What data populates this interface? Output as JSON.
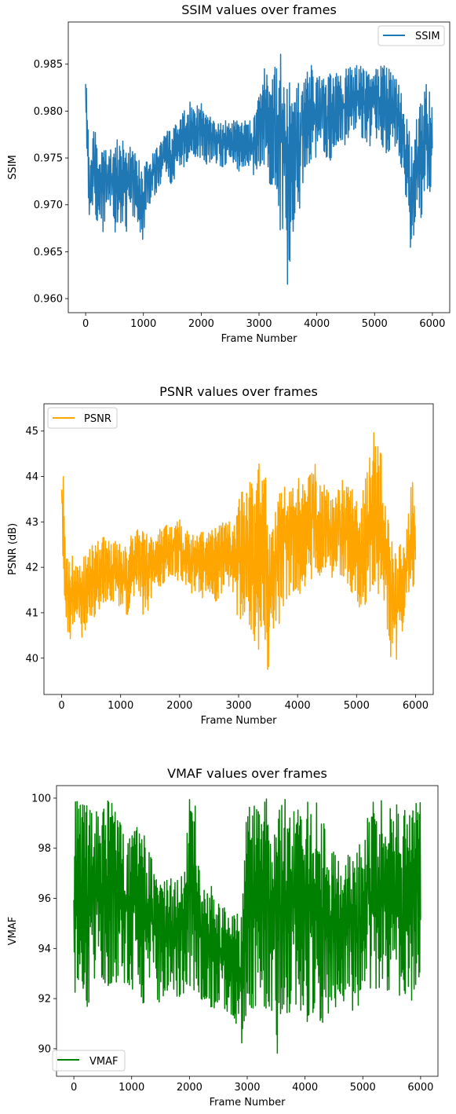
{
  "chart_data": [
    {
      "type": "line",
      "title": "SSIM values over frames",
      "xlabel": "Frame Number",
      "ylabel": "SSIM",
      "xlim": [
        -300,
        6300
      ],
      "ylim": [
        0.9585,
        0.9895
      ],
      "xticks": [
        0,
        1000,
        2000,
        3000,
        4000,
        5000,
        6000
      ],
      "yticks": [
        0.96,
        0.965,
        0.97,
        0.975,
        0.98,
        0.985
      ],
      "ytick_decimals": 3,
      "legend_position": "top-right",
      "grid": false,
      "series": [
        {
          "name": "SSIM",
          "color": "#1f77b4",
          "x": [
            0,
            20,
            40,
            60,
            80,
            100,
            150,
            200,
            250,
            300,
            350,
            400,
            450,
            500,
            600,
            700,
            800,
            900,
            1000,
            1050,
            1100,
            1200,
            1300,
            1400,
            1500,
            1600,
            1700,
            1800,
            1900,
            2000,
            2100,
            2200,
            2300,
            2400,
            2500,
            2600,
            2700,
            2800,
            2900,
            3000,
            3050,
            3100,
            3150,
            3200,
            3250,
            3300,
            3350,
            3400,
            3430,
            3460,
            3500,
            3520,
            3550,
            3600,
            3650,
            3700,
            3750,
            3800,
            3900,
            4000,
            4100,
            4200,
            4300,
            4400,
            4500,
            4600,
            4700,
            4800,
            4900,
            5000,
            5100,
            5200,
            5300,
            5400,
            5500,
            5550,
            5600,
            5640,
            5680,
            5720,
            5760,
            5800,
            5850,
            5900,
            5950,
            6000
          ],
          "min": [
            0.979,
            0.975,
            0.971,
            0.967,
            0.969,
            0.97,
            0.969,
            0.968,
            0.969,
            0.967,
            0.969,
            0.97,
            0.969,
            0.967,
            0.968,
            0.967,
            0.969,
            0.968,
            0.966,
            0.97,
            0.97,
            0.971,
            0.972,
            0.973,
            0.972,
            0.974,
            0.974,
            0.975,
            0.975,
            0.975,
            0.974,
            0.975,
            0.974,
            0.974,
            0.975,
            0.973,
            0.974,
            0.974,
            0.973,
            0.974,
            0.972,
            0.975,
            0.974,
            0.971,
            0.973,
            0.97,
            0.968,
            0.966,
            0.97,
            0.967,
            0.96,
            0.962,
            0.964,
            0.966,
            0.968,
            0.969,
            0.972,
            0.974,
            0.974,
            0.975,
            0.976,
            0.974,
            0.976,
            0.977,
            0.976,
            0.977,
            0.978,
            0.977,
            0.976,
            0.977,
            0.977,
            0.975,
            0.976,
            0.976,
            0.973,
            0.97,
            0.967,
            0.964,
            0.966,
            0.969,
            0.97,
            0.968,
            0.971,
            0.972,
            0.97,
            0.974
          ],
          "max": [
            0.985,
            0.983,
            0.979,
            0.976,
            0.975,
            0.975,
            0.979,
            0.976,
            0.975,
            0.977,
            0.976,
            0.976,
            0.976,
            0.977,
            0.977,
            0.977,
            0.976,
            0.975,
            0.975,
            0.976,
            0.975,
            0.976,
            0.977,
            0.978,
            0.978,
            0.979,
            0.98,
            0.981,
            0.981,
            0.981,
            0.98,
            0.979,
            0.979,
            0.979,
            0.979,
            0.979,
            0.979,
            0.979,
            0.979,
            0.982,
            0.983,
            0.985,
            0.984,
            0.985,
            0.985,
            0.985,
            0.985,
            0.988,
            0.988,
            0.984,
            0.985,
            0.984,
            0.982,
            0.981,
            0.983,
            0.984,
            0.985,
            0.984,
            0.985,
            0.984,
            0.984,
            0.984,
            0.984,
            0.984,
            0.985,
            0.985,
            0.985,
            0.985,
            0.984,
            0.985,
            0.985,
            0.985,
            0.984,
            0.984,
            0.982,
            0.98,
            0.978,
            0.977,
            0.977,
            0.979,
            0.98,
            0.981,
            0.982,
            0.983,
            0.983,
            0.98
          ]
        }
      ]
    },
    {
      "type": "line",
      "title": "PSNR values over frames",
      "xlabel": "Frame Number",
      "ylabel": "PSNR (dB)",
      "xlim": [
        -300,
        6300
      ],
      "ylim": [
        39.2,
        45.6
      ],
      "xticks": [
        0,
        1000,
        2000,
        3000,
        4000,
        5000,
        6000
      ],
      "yticks": [
        40,
        41,
        42,
        43,
        44,
        45
      ],
      "ytick_decimals": 0,
      "legend_position": "top-left",
      "grid": false,
      "series": [
        {
          "name": "PSNR",
          "color": "#ffa500",
          "x": [
            0,
            20,
            40,
            60,
            80,
            100,
            150,
            200,
            250,
            300,
            350,
            400,
            450,
            500,
            600,
            700,
            800,
            900,
            1000,
            1050,
            1100,
            1200,
            1300,
            1400,
            1500,
            1600,
            1700,
            1800,
            1900,
            2000,
            2100,
            2200,
            2300,
            2400,
            2500,
            2600,
            2700,
            2800,
            2900,
            3000,
            3050,
            3100,
            3150,
            3200,
            3250,
            3300,
            3350,
            3400,
            3430,
            3460,
            3500,
            3520,
            3550,
            3600,
            3650,
            3700,
            3750,
            3800,
            3900,
            4000,
            4100,
            4200,
            4300,
            4400,
            4500,
            4600,
            4700,
            4800,
            4900,
            5000,
            5100,
            5200,
            5300,
            5400,
            5500,
            5550,
            5600,
            5640,
            5680,
            5720,
            5760,
            5800,
            5850,
            5900,
            5950,
            6000
          ],
          "min": [
            42.8,
            41.9,
            41.6,
            41.0,
            40.8,
            40.6,
            40.4,
            40.7,
            41.0,
            40.8,
            40.4,
            40.6,
            40.7,
            40.8,
            41.0,
            41.2,
            41.3,
            41.2,
            41.1,
            41.0,
            40.9,
            41.3,
            41.5,
            40.8,
            41.2,
            41.5,
            41.6,
            41.8,
            41.8,
            41.6,
            41.5,
            41.4,
            41.4,
            41.3,
            41.5,
            41.2,
            41.4,
            41.6,
            41.4,
            40.8,
            40.9,
            41.0,
            40.6,
            40.3,
            40.4,
            40.3,
            39.9,
            40.3,
            40.5,
            40.1,
            39.5,
            39.6,
            39.8,
            40.2,
            40.5,
            40.8,
            41.0,
            41.2,
            41.5,
            41.3,
            41.5,
            41.6,
            41.7,
            41.8,
            41.9,
            41.6,
            41.8,
            41.8,
            41.5,
            41.2,
            41.0,
            41.4,
            41.6,
            41.2,
            40.6,
            40.2,
            39.8,
            39.4,
            39.7,
            40.1,
            40.4,
            40.8,
            41.2,
            41.5,
            41.5,
            41.7
          ],
          "max": [
            44.1,
            44.4,
            43.8,
            43.0,
            42.5,
            42.3,
            42.7,
            42.3,
            42.0,
            42.1,
            42.2,
            42.3,
            42.3,
            42.5,
            42.6,
            42.7,
            42.6,
            42.7,
            42.5,
            42.4,
            42.5,
            42.8,
            42.9,
            42.9,
            42.7,
            42.8,
            42.9,
            43.0,
            43.0,
            43.1,
            42.9,
            42.8,
            42.7,
            42.8,
            42.8,
            42.9,
            43.0,
            43.0,
            43.1,
            43.5,
            43.8,
            43.5,
            43.7,
            44.1,
            43.6,
            43.7,
            44.4,
            45.4,
            45.4,
            44.0,
            42.5,
            42.7,
            43.0,
            43.3,
            43.8,
            43.9,
            44.0,
            44.0,
            43.9,
            44.0,
            43.8,
            44.1,
            44.3,
            43.9,
            43.8,
            43.6,
            44.0,
            44.1,
            43.8,
            43.5,
            43.6,
            44.5,
            45.2,
            44.8,
            43.7,
            43.0,
            42.6,
            42.4,
            42.2,
            42.5,
            42.7,
            42.4,
            42.9,
            43.6,
            44.0,
            42.9
          ]
        }
      ]
    },
    {
      "type": "line",
      "title": "VMAF values over frames",
      "xlabel": "Frame Number",
      "ylabel": "VMAF",
      "xlim": [
        -300,
        6300
      ],
      "ylim": [
        88.9,
        100.5
      ],
      "xticks": [
        0,
        1000,
        2000,
        3000,
        4000,
        5000,
        6000
      ],
      "yticks": [
        90,
        92,
        94,
        96,
        98,
        100
      ],
      "ytick_decimals": 0,
      "legend_position": "bottom-left",
      "grid": false,
      "series": [
        {
          "name": "VMAF",
          "color": "#008000",
          "x": [
            0,
            20,
            40,
            60,
            80,
            100,
            150,
            200,
            250,
            300,
            350,
            400,
            450,
            500,
            600,
            700,
            800,
            900,
            1000,
            1050,
            1100,
            1200,
            1300,
            1400,
            1500,
            1600,
            1700,
            1800,
            1900,
            2000,
            2100,
            2200,
            2300,
            2400,
            2500,
            2600,
            2700,
            2800,
            2900,
            3000,
            3050,
            3100,
            3150,
            3200,
            3250,
            3300,
            3350,
            3400,
            3430,
            3460,
            3500,
            3520,
            3550,
            3600,
            3650,
            3700,
            3750,
            3800,
            3900,
            4000,
            4100,
            4200,
            4300,
            4400,
            4500,
            4600,
            4700,
            4800,
            4900,
            5000,
            5100,
            5200,
            5300,
            5400,
            5500,
            5550,
            5600,
            5640,
            5680,
            5720,
            5760,
            5800,
            5850,
            5900,
            5950,
            6000
          ],
          "min": [
            91.2,
            92.0,
            92.3,
            92.8,
            92.7,
            93.0,
            92.5,
            91.5,
            91.8,
            92.0,
            92.4,
            92.6,
            92.5,
            92.7,
            92.5,
            92.8,
            92.4,
            92.6,
            92.3,
            92.0,
            92.5,
            91.8,
            92.2,
            92.0,
            91.8,
            92.3,
            92.5,
            92.0,
            92.2,
            92.2,
            92.1,
            92.0,
            91.8,
            91.5,
            91.9,
            91.6,
            91.4,
            91.0,
            90.2,
            90.8,
            91.6,
            91.5,
            91.2,
            91.4,
            92.0,
            91.6,
            91.3,
            91.7,
            91.4,
            90.9,
            91.0,
            89.4,
            90.6,
            91.5,
            91.5,
            91.0,
            91.2,
            91.6,
            91.0,
            90.8,
            91.2,
            91.3,
            91.0,
            91.4,
            91.5,
            92.0,
            91.8,
            91.5,
            91.6,
            92.2,
            92.4,
            92.0,
            92.3,
            92.1,
            92.5,
            92.0,
            92.4,
            91.8,
            92.0,
            92.2,
            91.5,
            92.3,
            90.8,
            91.9,
            92.4,
            93.3
          ],
          "max": [
            100,
            100,
            100,
            100,
            100,
            100,
            100,
            100,
            99.5,
            100,
            99.0,
            100,
            99.5,
            99.8,
            100,
            100,
            99.5,
            99.0,
            98.6,
            98.8,
            99.0,
            98.5,
            98.5,
            97.2,
            97.0,
            97.0,
            96.8,
            97.0,
            96.9,
            100,
            100,
            96.8,
            96.5,
            96.5,
            95.9,
            95.7,
            95.5,
            95.4,
            95.5,
            100,
            100,
            100,
            100,
            100,
            100,
            100,
            100,
            100,
            99.4,
            99.8,
            100,
            98.8,
            99.5,
            100,
            100,
            100,
            100,
            100,
            100,
            100,
            100,
            100,
            99.5,
            98.0,
            98.4,
            97.3,
            97.5,
            98.2,
            98.6,
            97.6,
            100,
            100,
            100,
            100,
            100,
            100,
            100,
            98.2,
            98.5,
            100,
            100,
            100,
            100,
            100,
            100,
            100
          ]
        }
      ]
    }
  ]
}
